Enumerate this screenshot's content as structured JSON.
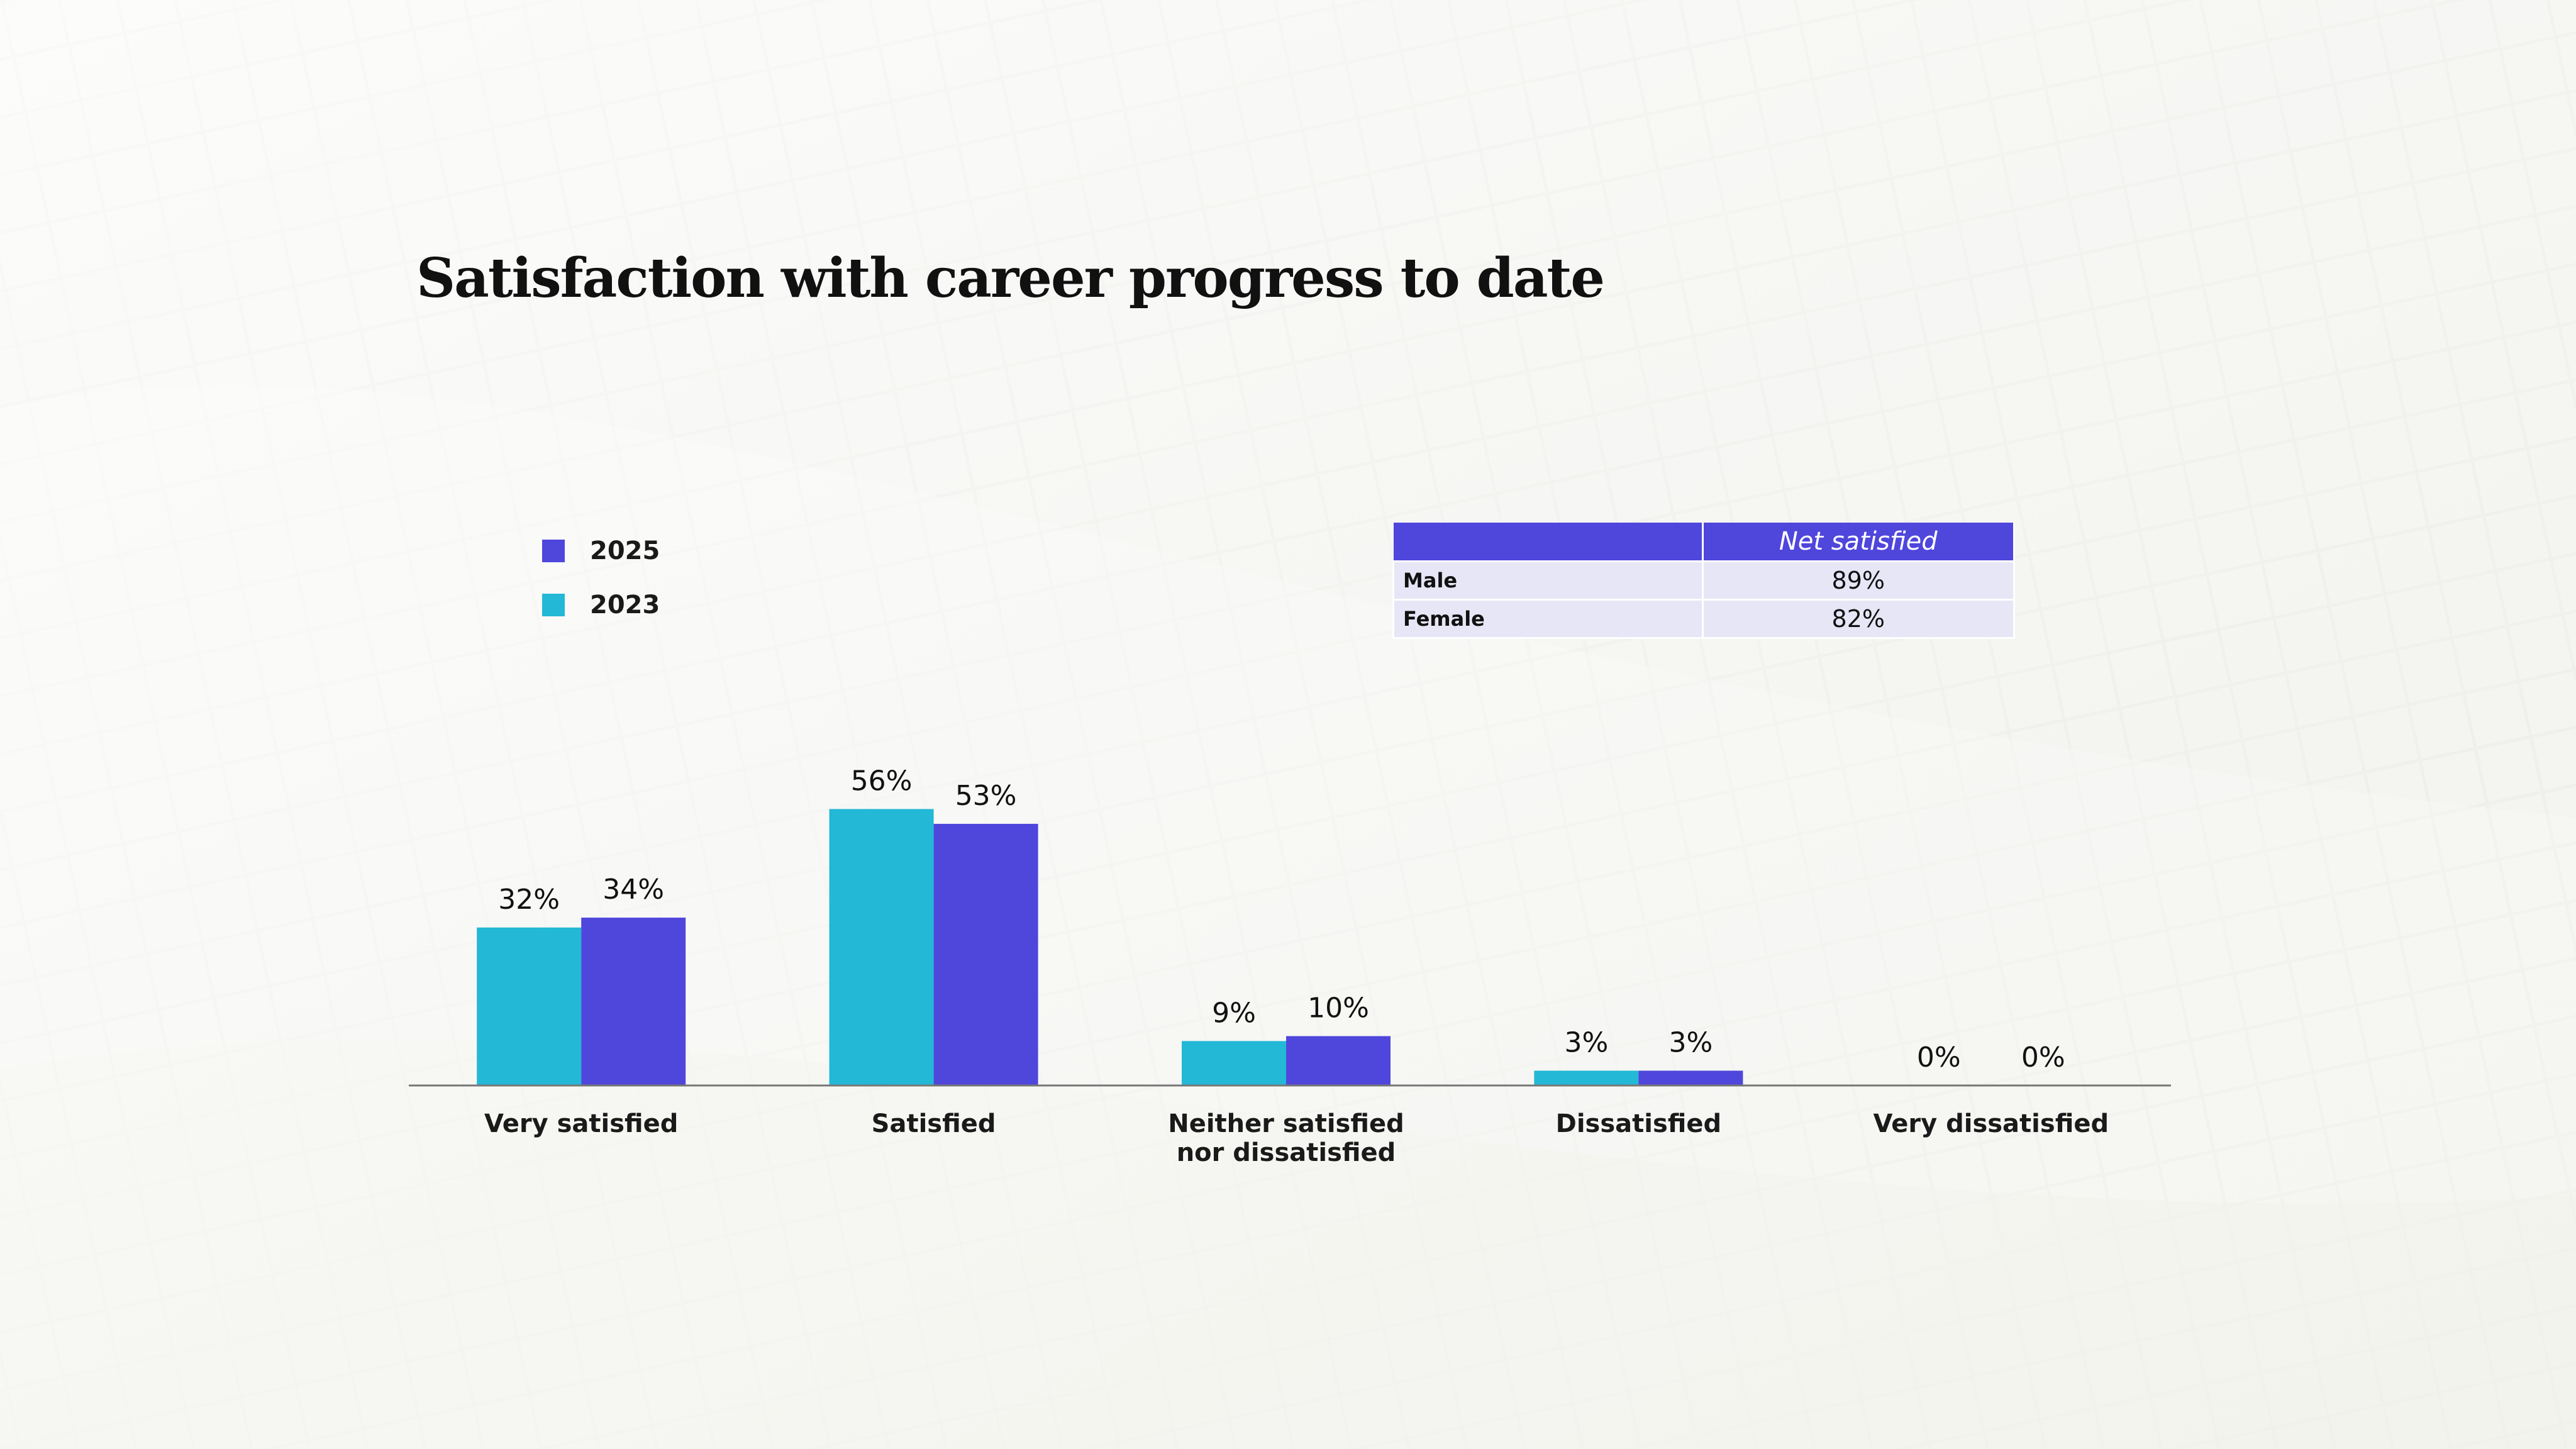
{
  "title": "Satisfaction with career progress to date",
  "colors": {
    "series_2025": "#4f46dc",
    "series_2023": "#22b8d6",
    "axis": "#777777"
  },
  "legend": {
    "items": [
      {
        "label": "2025",
        "color": "#4f46dc"
      },
      {
        "label": "2023",
        "color": "#22b8d6"
      }
    ]
  },
  "net_table": {
    "header": "Net satisfied",
    "rows": [
      {
        "label": "Male",
        "value": "89%"
      },
      {
        "label": "Female",
        "value": "82%"
      }
    ]
  },
  "chart_data": {
    "type": "bar",
    "title": "Satisfaction with career progress to date",
    "categories": [
      [
        "Very satisfied"
      ],
      [
        "Satisfied"
      ],
      [
        "Neither satisfied",
        "nor dissatisfied"
      ],
      [
        "Dissatisfied"
      ],
      [
        "Very dissatisfied"
      ]
    ],
    "series": [
      {
        "name": "2023",
        "color": "#22b8d6",
        "values": [
          32,
          56,
          9,
          3,
          0
        ]
      },
      {
        "name": "2025",
        "color": "#4f46dc",
        "values": [
          34,
          53,
          10,
          3,
          0
        ]
      }
    ],
    "value_suffix": "%",
    "ylim": [
      0,
      60
    ],
    "grid": false,
    "legend_position": "top-left"
  }
}
